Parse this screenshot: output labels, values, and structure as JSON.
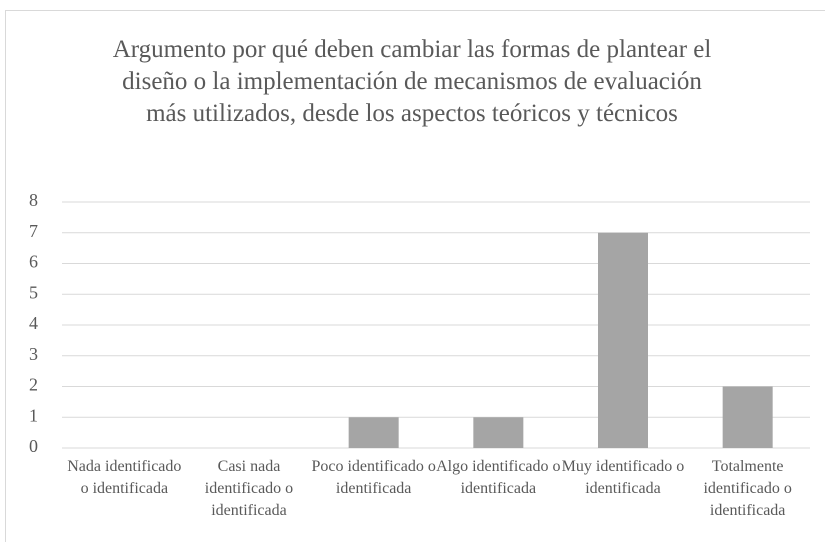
{
  "chart_data": {
    "type": "bar",
    "title": "Argumento por qué deben cambiar las formas de plantear el diseño o la implementación de mecanismos de evaluación más utilizados, desde los aspectos teóricos y técnicos",
    "categories": [
      "Nada identificado o identificada",
      "Casi nada identificado o identificada",
      "Poco identificado o identificada",
      "Algo identificado o identificada",
      "Muy identificado o identificada",
      "Totalmente identificado o identificada"
    ],
    "values": [
      0,
      0,
      1,
      1,
      7,
      2
    ],
    "color": "#a5a5a5",
    "ylim": [
      0,
      8
    ],
    "yticks": [
      0,
      1,
      2,
      3,
      4,
      5,
      6,
      7,
      8
    ],
    "grid": true
  }
}
